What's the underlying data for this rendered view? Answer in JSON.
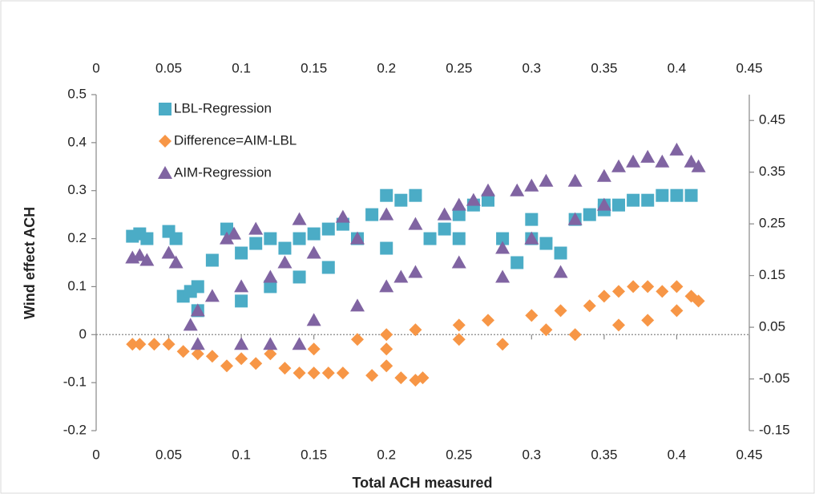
{
  "chart_data": {
    "type": "scatter",
    "x_label": "Total ACH measured",
    "y_label": "Wind effect ACH",
    "xlim": [
      0,
      0.45
    ],
    "xticks": [
      0,
      0.05,
      0.1,
      0.15,
      0.2,
      0.25,
      0.3,
      0.35,
      0.4,
      0.45
    ],
    "x2lim": [
      0,
      0.45
    ],
    "x2ticks": [
      0,
      0.05,
      0.1,
      0.15,
      0.2,
      0.25,
      0.3,
      0.35,
      0.4,
      0.45
    ],
    "ylim": [
      -0.2,
      0.5
    ],
    "yticks": [
      -0.2,
      -0.1,
      0,
      0.1,
      0.2,
      0.3,
      0.4,
      0.5
    ],
    "y2lim": [
      -0.15,
      0.5
    ],
    "y2ticks": [
      -0.15,
      -0.05,
      0.05,
      0.15,
      0.25,
      0.35,
      0.45
    ],
    "legend": "upper left",
    "series": [
      {
        "name": "LBL-Regression",
        "color": "#4bacc6",
        "marker": "square",
        "x": [
          0.025,
          0.03,
          0.035,
          0.05,
          0.055,
          0.06,
          0.065,
          0.07,
          0.08,
          0.09,
          0.1,
          0.11,
          0.12,
          0.13,
          0.14,
          0.15,
          0.16,
          0.17,
          0.18,
          0.19,
          0.2,
          0.21,
          0.22,
          0.23,
          0.24,
          0.25,
          0.26,
          0.27,
          0.28,
          0.29,
          0.3,
          0.31,
          0.32,
          0.33,
          0.34,
          0.35,
          0.36,
          0.37,
          0.38,
          0.39,
          0.4,
          0.41,
          0.07,
          0.1,
          0.12,
          0.14,
          0.16,
          0.2,
          0.25,
          0.3,
          0.35
        ],
        "values": [
          0.205,
          0.21,
          0.2,
          0.215,
          0.2,
          0.08,
          0.09,
          0.1,
          0.155,
          0.22,
          0.17,
          0.19,
          0.2,
          0.18,
          0.2,
          0.21,
          0.22,
          0.23,
          0.2,
          0.25,
          0.29,
          0.28,
          0.29,
          0.2,
          0.22,
          0.25,
          0.27,
          0.28,
          0.2,
          0.15,
          0.2,
          0.19,
          0.17,
          0.24,
          0.25,
          0.26,
          0.27,
          0.28,
          0.28,
          0.29,
          0.29,
          0.29,
          0.05,
          0.07,
          0.1,
          0.12,
          0.14,
          0.18,
          0.2,
          0.24,
          0.27
        ]
      },
      {
        "name": "Difference=AIM-LBL",
        "color": "#f79646",
        "marker": "diamond",
        "x": [
          0.025,
          0.03,
          0.04,
          0.05,
          0.06,
          0.07,
          0.08,
          0.09,
          0.1,
          0.11,
          0.12,
          0.13,
          0.14,
          0.15,
          0.16,
          0.17,
          0.19,
          0.2,
          0.21,
          0.22,
          0.225,
          0.15,
          0.18,
          0.2,
          0.22,
          0.25,
          0.27,
          0.28,
          0.3,
          0.32,
          0.34,
          0.35,
          0.36,
          0.37,
          0.38,
          0.39,
          0.4,
          0.41,
          0.415,
          0.36,
          0.38,
          0.4,
          0.33,
          0.31,
          0.25,
          0.2
        ],
        "values": [
          -0.02,
          -0.02,
          -0.02,
          -0.02,
          -0.035,
          -0.04,
          -0.045,
          -0.065,
          -0.05,
          -0.06,
          -0.04,
          -0.07,
          -0.08,
          -0.08,
          -0.08,
          -0.08,
          -0.085,
          -0.065,
          -0.09,
          -0.095,
          -0.09,
          -0.03,
          -0.01,
          0,
          0.01,
          0.02,
          0.03,
          -0.02,
          0.04,
          0.05,
          0.06,
          0.08,
          0.09,
          0.1,
          0.1,
          0.09,
          0.1,
          0.08,
          0.07,
          0.02,
          0.03,
          0.05,
          0,
          0.01,
          -0.01,
          -0.03
        ]
      },
      {
        "name": "AIM-Regression",
        "color": "#8064a2",
        "marker": "triangle",
        "x": [
          0.025,
          0.03,
          0.035,
          0.05,
          0.055,
          0.065,
          0.07,
          0.08,
          0.09,
          0.095,
          0.1,
          0.11,
          0.12,
          0.13,
          0.14,
          0.15,
          0.17,
          0.18,
          0.2,
          0.21,
          0.22,
          0.24,
          0.25,
          0.26,
          0.27,
          0.28,
          0.29,
          0.3,
          0.31,
          0.32,
          0.33,
          0.35,
          0.36,
          0.37,
          0.38,
          0.39,
          0.4,
          0.41,
          0.415,
          0.07,
          0.1,
          0.12,
          0.14,
          0.15,
          0.18,
          0.2,
          0.22,
          0.25,
          0.28,
          0.3,
          0.33,
          0.35
        ],
        "values": [
          0.16,
          0.165,
          0.155,
          0.17,
          0.15,
          0.02,
          0.05,
          0.08,
          0.2,
          0.21,
          0.1,
          0.22,
          0.12,
          0.15,
          0.24,
          0.17,
          0.245,
          0.2,
          0.25,
          0.12,
          0.23,
          0.25,
          0.27,
          0.28,
          0.3,
          0.12,
          0.3,
          0.31,
          0.32,
          0.13,
          0.32,
          0.33,
          0.35,
          0.36,
          0.37,
          0.36,
          0.385,
          0.36,
          0.35,
          -0.02,
          -0.02,
          -0.02,
          -0.02,
          0.03,
          0.06,
          0.1,
          0.13,
          0.15,
          0.18,
          0.2,
          0.24,
          0.27
        ]
      }
    ]
  }
}
